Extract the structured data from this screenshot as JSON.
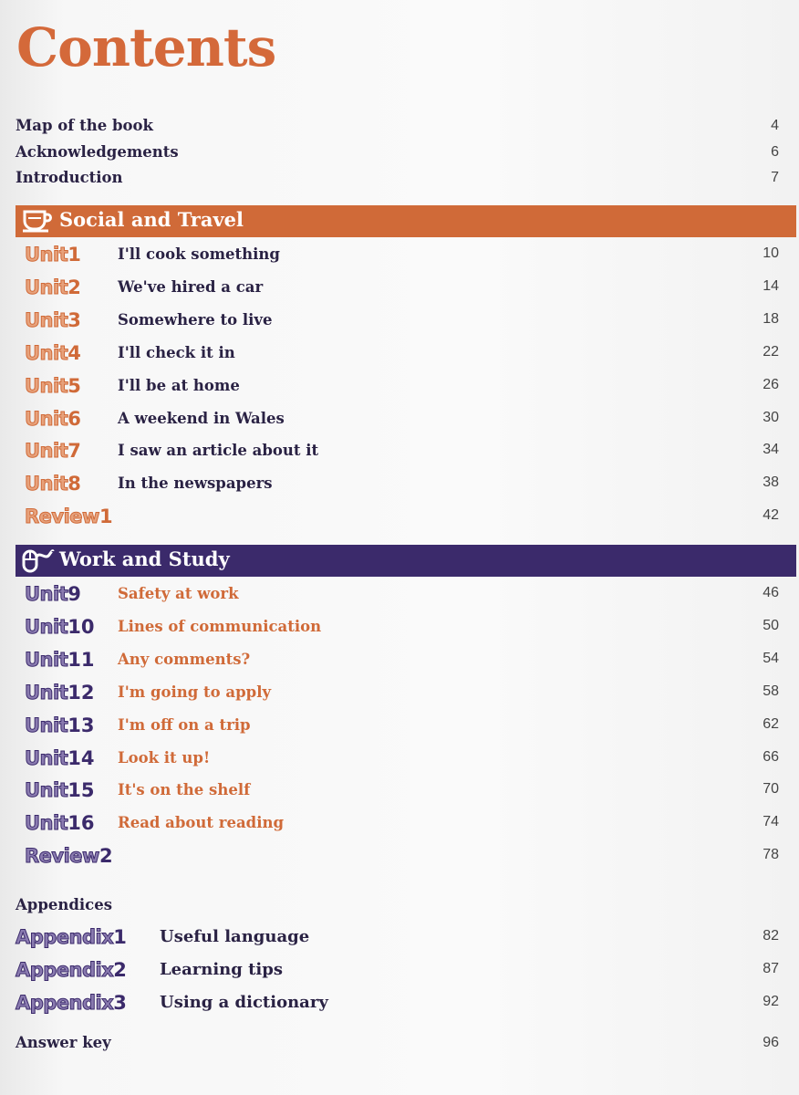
{
  "title": "Contents",
  "front": [
    {
      "label": "Map of the book",
      "page": "4"
    },
    {
      "label": "Acknowledgements",
      "page": "6"
    },
    {
      "label": "Introduction",
      "page": "7"
    }
  ],
  "colors": {
    "orange": "#d06a38",
    "purple": "#3b2a6b",
    "dark": "#2a2244"
  },
  "sections": [
    {
      "label": "Social and Travel",
      "icon": "coffee-cup-icon",
      "units": [
        {
          "word": "Unit",
          "num": "1",
          "title": "I'll cook something",
          "page": "10"
        },
        {
          "word": "Unit",
          "num": "2",
          "title": "We've hired a car",
          "page": "14"
        },
        {
          "word": "Unit",
          "num": "3",
          "title": "Somewhere to live",
          "page": "18"
        },
        {
          "word": "Unit",
          "num": "4",
          "title": "I'll check it in",
          "page": "22"
        },
        {
          "word": "Unit",
          "num": "5",
          "title": "I'll be at home",
          "page": "26"
        },
        {
          "word": "Unit",
          "num": "6",
          "title": "A weekend in Wales",
          "page": "30"
        },
        {
          "word": "Unit",
          "num": "7",
          "title": "I saw an article about it",
          "page": "34"
        },
        {
          "word": "Unit",
          "num": "8",
          "title": "In the newspapers",
          "page": "38"
        }
      ],
      "review": {
        "word": "Review",
        "num": "1",
        "page": "42"
      }
    },
    {
      "label": "Work and Study",
      "icon": "computer-mouse-icon",
      "units": [
        {
          "word": "Unit",
          "num": "9",
          "title": "Safety at work",
          "page": "46"
        },
        {
          "word": "Unit",
          "num": "10",
          "title": "Lines of communication",
          "page": "50"
        },
        {
          "word": "Unit",
          "num": "11",
          "title": "Any comments?",
          "page": "54"
        },
        {
          "word": "Unit",
          "num": "12",
          "title": "I'm going to apply",
          "page": "58"
        },
        {
          "word": "Unit",
          "num": "13",
          "title": "I'm off on a trip",
          "page": "62"
        },
        {
          "word": "Unit",
          "num": "14",
          "title": "Look it up!",
          "page": "66"
        },
        {
          "word": "Unit",
          "num": "15",
          "title": "It's on the shelf",
          "page": "70"
        },
        {
          "word": "Unit",
          "num": "16",
          "title": "Read about reading",
          "page": "74"
        }
      ],
      "review": {
        "word": "Review",
        "num": "2",
        "page": "78"
      }
    }
  ],
  "appendices": {
    "heading": "Appendices",
    "items": [
      {
        "word": "Appendix",
        "num": "1",
        "title": "Useful language",
        "page": "82"
      },
      {
        "word": "Appendix",
        "num": "2",
        "title": "Learning tips",
        "page": "87"
      },
      {
        "word": "Appendix",
        "num": "3",
        "title": "Using a dictionary",
        "page": "92"
      }
    ]
  },
  "answer_key": {
    "label": "Answer key",
    "page": "96"
  }
}
